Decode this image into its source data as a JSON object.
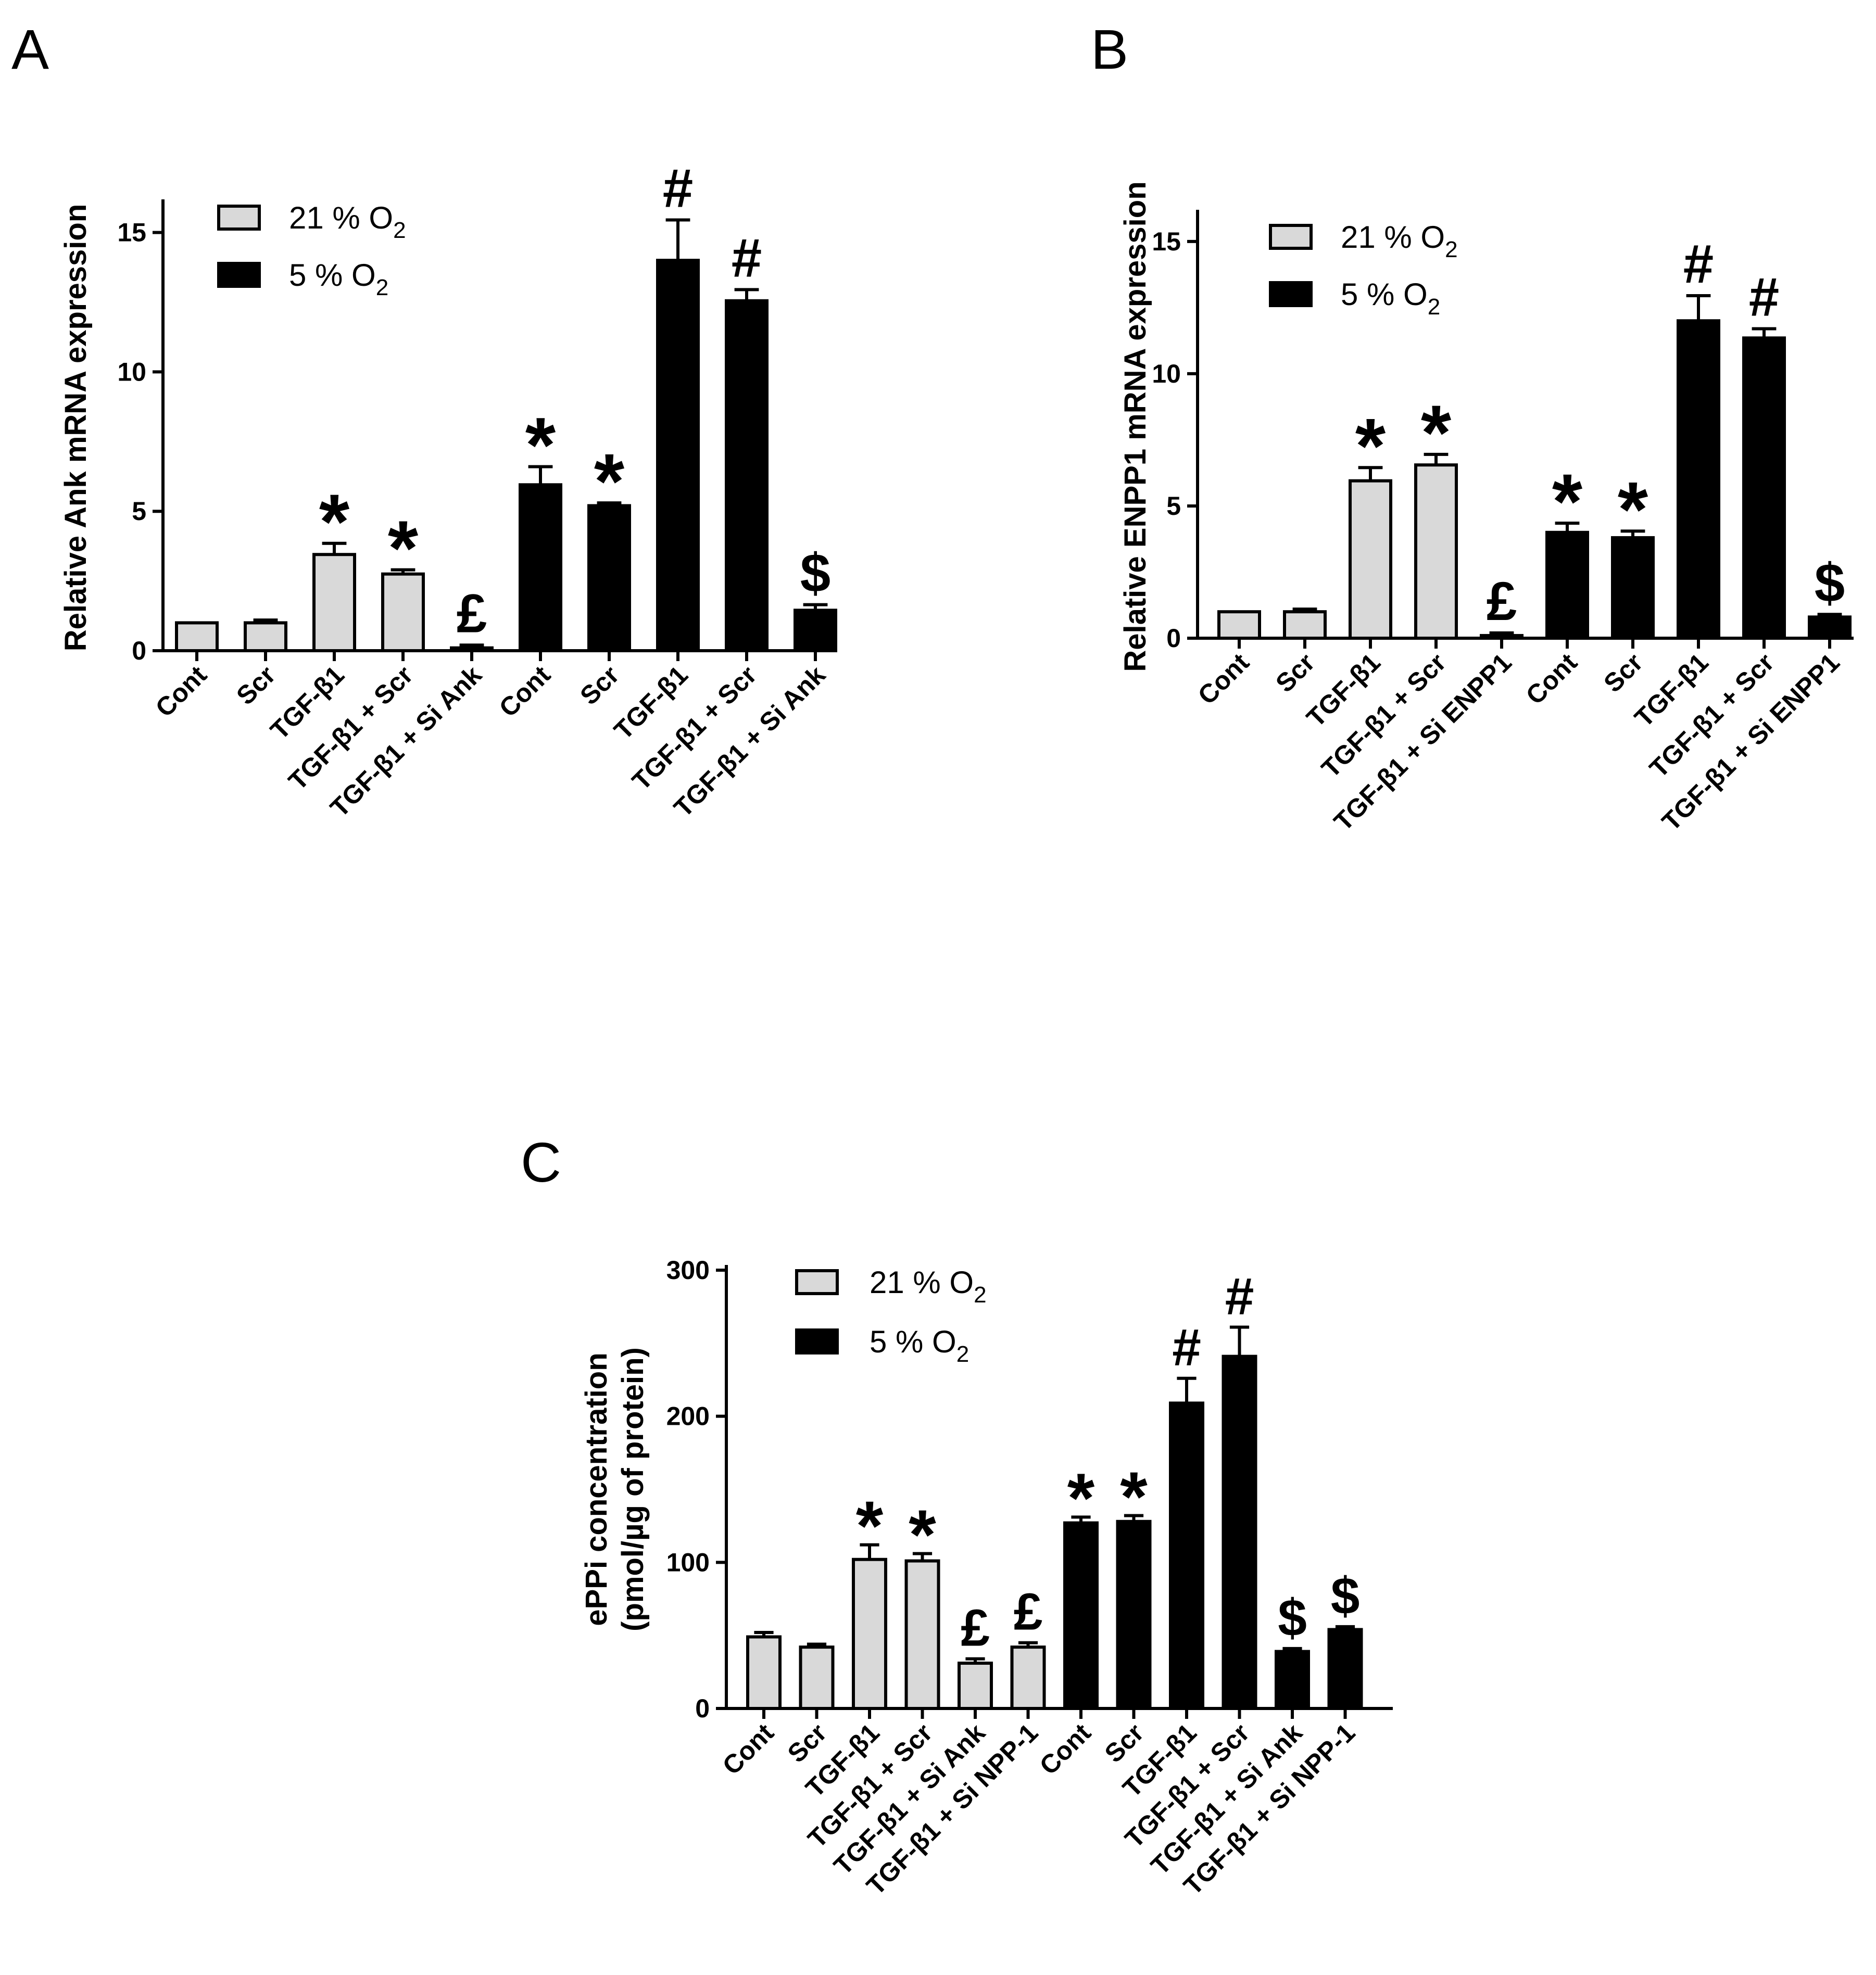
{
  "chart_data": [
    {
      "panel": "A",
      "type": "bar",
      "ylabel": "Relative Ank mRNA expression",
      "ylim": [
        0,
        16
      ],
      "yticks": [
        0,
        5,
        10,
        15
      ],
      "legend": [
        {
          "label": "21 % O",
          "sub": "2",
          "color": "#d9d9d9"
        },
        {
          "label": "5 % O",
          "sub": "2",
          "color": "#000000"
        }
      ],
      "categories": [
        "Cont",
        "Scr",
        "TGF-β1",
        "TGF-β1 + Scr",
        "TGF-β1 + Si Ank",
        "Cont",
        "Scr",
        "TGF-β1",
        "TGF-β1 + Scr",
        "TGF-β1 + Si Ank"
      ],
      "groups": [
        "21 % O2",
        "21 % O2",
        "21 % O2",
        "21 % O2",
        "21 % O2",
        "5 % O2",
        "5 % O2",
        "5 % O2",
        "5 % O2",
        "5 % O2"
      ],
      "values": [
        1.0,
        1.0,
        3.45,
        2.75,
        0.1,
        5.95,
        5.2,
        14.0,
        12.55,
        1.45
      ],
      "errors": [
        0.0,
        0.1,
        0.4,
        0.15,
        0.1,
        0.65,
        0.1,
        1.45,
        0.4,
        0.2
      ],
      "annotations": [
        "",
        "",
        "*",
        "*",
        "£",
        "*",
        "*",
        "#",
        "#",
        "$"
      ]
    },
    {
      "panel": "B",
      "type": "bar",
      "ylabel": "Relative ENPP1 mRNA expression",
      "ylim": [
        0,
        16
      ],
      "yticks": [
        0,
        5,
        10,
        15
      ],
      "legend": [
        {
          "label": "21 % O",
          "sub": "2",
          "color": "#d9d9d9"
        },
        {
          "label": "5 % O",
          "sub": "2",
          "color": "#000000"
        }
      ],
      "categories": [
        "Cont",
        "Scr",
        "TGF-β1",
        "TGF-β1 + Scr",
        "TGF-β1 + Si ENPP1",
        "Cont",
        "Scr",
        "TGF-β1",
        "TGF-β1 + Scr",
        "TGF-β1 + Si ENPP1"
      ],
      "groups": [
        "21 % O2",
        "21 % O2",
        "21 % O2",
        "21 % O2",
        "21 % O2",
        "5 % O2",
        "5 % O2",
        "5 % O2",
        "5 % O2",
        "5 % O2"
      ],
      "values": [
        1.0,
        1.0,
        5.95,
        6.55,
        0.1,
        4.0,
        3.8,
        12.0,
        11.35,
        0.8
      ],
      "errors": [
        0.0,
        0.1,
        0.5,
        0.4,
        0.1,
        0.35,
        0.25,
        0.95,
        0.35,
        0.1
      ],
      "annotations": [
        "",
        "",
        "*",
        "*",
        "£",
        "*",
        "*",
        "#",
        "#",
        "$"
      ]
    },
    {
      "panel": "C",
      "type": "bar",
      "ylabel": "ePPi concentration",
      "ylabel2": "(pmol/µg of protein)",
      "ylim": [
        0,
        300
      ],
      "yticks": [
        0,
        100,
        200,
        300
      ],
      "legend": [
        {
          "label": "21 % O",
          "sub": "2",
          "color": "#d9d9d9"
        },
        {
          "label": "5 % O",
          "sub": "2",
          "color": "#000000"
        }
      ],
      "categories": [
        "Cont",
        "Scr",
        "TGF-β1",
        "TGF-β1 + Scr",
        "TGF-β1 + Si Ank",
        "TGF-β1 + Si NPP-1",
        "Cont",
        "Scr",
        "TGF-β1",
        "TGF-β1 + Scr",
        "TGF-β1 + Si Ank",
        "TGF-β1 + Si NPP-1"
      ],
      "groups": [
        "21 % O2",
        "21 % O2",
        "21 % O2",
        "21 % O2",
        "21 % O2",
        "21 % O2",
        "5 % O2",
        "5 % O2",
        "5 % O2",
        "5 % O2",
        "5 % O2",
        "5 % O2"
      ],
      "values": [
        49,
        42,
        102,
        101,
        31,
        42,
        127,
        128,
        209,
        241,
        39,
        54
      ],
      "errors": [
        3,
        2,
        10,
        5,
        3,
        3,
        4,
        4,
        17,
        20,
        2,
        2
      ],
      "annotations": [
        "",
        "",
        "*",
        "*",
        "£",
        "£",
        "*",
        "*",
        "#",
        "#",
        "$",
        "$"
      ]
    }
  ]
}
